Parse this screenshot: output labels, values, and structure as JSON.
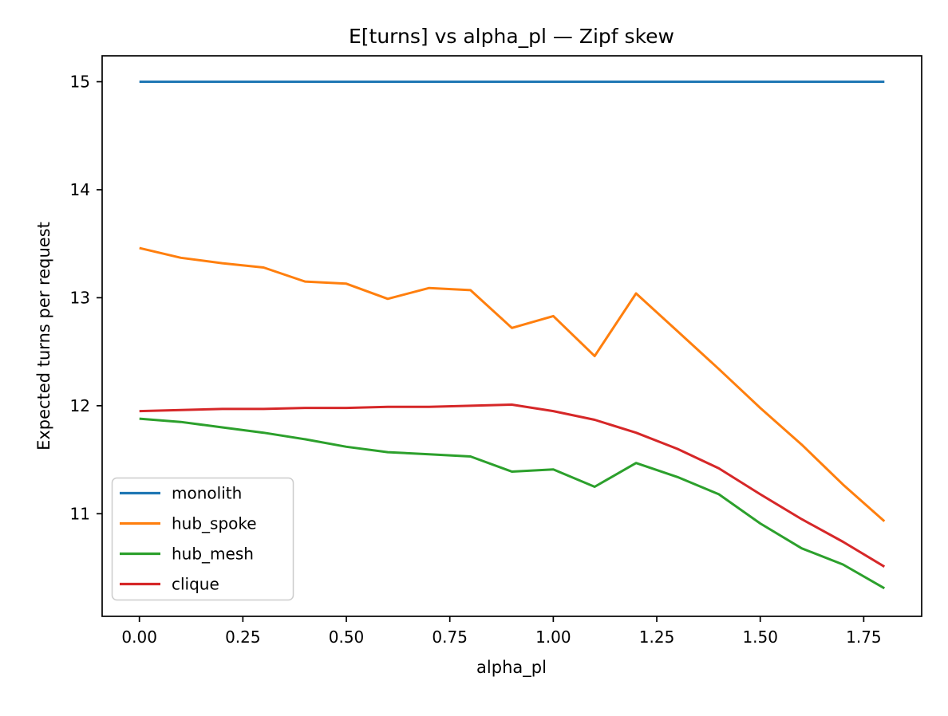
{
  "chart_data": {
    "type": "line",
    "title": "E[turns] vs alpha_pl — Zipf skew",
    "xlabel": "alpha_pl",
    "ylabel": "Expected turns per request",
    "x": [
      0.0,
      0.1,
      0.2,
      0.3,
      0.4,
      0.5,
      0.6,
      0.7,
      0.8,
      0.9,
      1.0,
      1.1,
      1.2,
      1.3,
      1.4,
      1.5,
      1.6,
      1.7,
      1.8
    ],
    "series": [
      {
        "name": "monolith",
        "color": "#1f77b4",
        "values": [
          15.0,
          15.0,
          15.0,
          15.0,
          15.0,
          15.0,
          15.0,
          15.0,
          15.0,
          15.0,
          15.0,
          15.0,
          15.0,
          15.0,
          15.0,
          15.0,
          15.0,
          15.0,
          15.0
        ]
      },
      {
        "name": "hub_spoke",
        "color": "#ff7f0e",
        "values": [
          13.46,
          13.37,
          13.32,
          13.28,
          13.15,
          13.13,
          12.99,
          13.09,
          13.07,
          12.72,
          12.83,
          12.46,
          13.04,
          12.69,
          12.34,
          11.98,
          11.64,
          11.27,
          10.93
        ]
      },
      {
        "name": "hub_mesh",
        "color": "#2ca02c",
        "values": [
          11.88,
          11.85,
          11.8,
          11.75,
          11.69,
          11.62,
          11.57,
          11.55,
          11.53,
          11.39,
          11.41,
          11.25,
          11.47,
          11.34,
          11.18,
          10.91,
          10.68,
          10.53,
          10.31
        ]
      },
      {
        "name": "clique",
        "color": "#d62728",
        "values": [
          11.95,
          11.96,
          11.97,
          11.97,
          11.98,
          11.98,
          11.99,
          11.99,
          12.0,
          12.01,
          11.95,
          11.87,
          11.75,
          11.6,
          11.42,
          11.18,
          10.95,
          10.74,
          10.51
        ]
      }
    ],
    "xlim": [
      -0.09,
      1.89
    ],
    "ylim": [
      10.05,
      15.24
    ],
    "xticks": [
      0.0,
      0.25,
      0.5,
      0.75,
      1.0,
      1.25,
      1.5,
      1.75
    ],
    "xtick_labels": [
      "0.00",
      "0.25",
      "0.50",
      "0.75",
      "1.00",
      "1.25",
      "1.50",
      "1.75"
    ],
    "yticks": [
      11,
      12,
      13,
      14,
      15
    ],
    "ytick_labels": [
      "11",
      "12",
      "13",
      "14",
      "15"
    ],
    "legend": {
      "position": "lower left",
      "labels": [
        "monolith",
        "hub_spoke",
        "hub_mesh",
        "clique"
      ]
    },
    "grid": false,
    "background_color": "#ffffff"
  }
}
